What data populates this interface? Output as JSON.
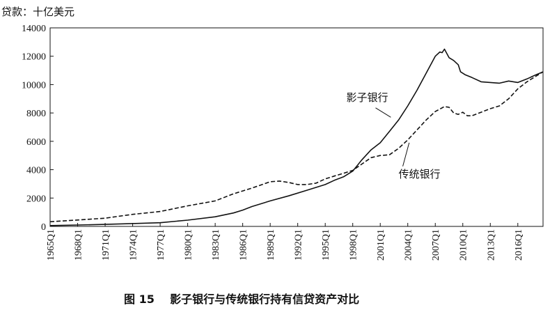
{
  "chart_data": {
    "type": "line",
    "unit_label": "贷款：十亿美元",
    "caption": "图 15    影子银行与传统银行持有信贷资产对比",
    "ylim": [
      0,
      14000
    ],
    "y_ticks": [
      0,
      2000,
      4000,
      6000,
      8000,
      10000,
      12000,
      14000
    ],
    "y_tick_labels": [
      "0",
      "2000",
      "4000",
      "6000",
      "8000",
      "10000",
      "12000",
      "14000"
    ],
    "xlim": [
      1965.0,
      2018.75
    ],
    "x_ticks": [
      1965,
      1968,
      1971,
      1974,
      1977,
      1980,
      1983,
      1986,
      1989,
      1992,
      1995,
      1998,
      2001,
      2004,
      2007,
      2010,
      2013,
      2016
    ],
    "x_tick_labels": [
      "1965Q1",
      "1968Q1",
      "1971Q1",
      "1974Q1",
      "1977Q1",
      "1980Q1",
      "1983Q1",
      "1986Q1",
      "1989Q1",
      "1992Q1",
      "1995Q1",
      "1998Q1",
      "2001Q1",
      "2004Q1",
      "2007Q1",
      "2010Q1",
      "2013Q1",
      "2016Q1"
    ],
    "grid": false,
    "series": [
      {
        "name": "影子银行",
        "style": "solid",
        "points": [
          [
            1965.0,
            60
          ],
          [
            1968.0,
            100
          ],
          [
            1971.0,
            140
          ],
          [
            1974.0,
            200
          ],
          [
            1977.0,
            260
          ],
          [
            1980.0,
            440
          ],
          [
            1983.0,
            680
          ],
          [
            1985.0,
            950
          ],
          [
            1986.0,
            1150
          ],
          [
            1987.0,
            1400
          ],
          [
            1989.0,
            1800
          ],
          [
            1991.0,
            2150
          ],
          [
            1993.0,
            2550
          ],
          [
            1995.0,
            2950
          ],
          [
            1996.0,
            3250
          ],
          [
            1997.0,
            3500
          ],
          [
            1998.0,
            3900
          ],
          [
            1999.0,
            4700
          ],
          [
            2000.0,
            5400
          ],
          [
            2001.0,
            5900
          ],
          [
            2002.0,
            6700
          ],
          [
            2003.0,
            7500
          ],
          [
            2004.0,
            8500
          ],
          [
            2005.0,
            9600
          ],
          [
            2006.0,
            10800
          ],
          [
            2007.0,
            12000
          ],
          [
            2007.5,
            12300
          ],
          [
            2007.75,
            12250
          ],
          [
            2008.0,
            12500
          ],
          [
            2008.5,
            11900
          ],
          [
            2009.0,
            11700
          ],
          [
            2009.5,
            11400
          ],
          [
            2009.75,
            10900
          ],
          [
            2010.25,
            10700
          ],
          [
            2011.0,
            10500
          ],
          [
            2012.0,
            10200
          ],
          [
            2013.0,
            10150
          ],
          [
            2014.0,
            10100
          ],
          [
            2015.0,
            10250
          ],
          [
            2016.0,
            10150
          ],
          [
            2017.0,
            10400
          ],
          [
            2018.0,
            10700
          ],
          [
            2018.75,
            10900
          ]
        ]
      },
      {
        "name": "传统银行",
        "style": "dashed",
        "points": [
          [
            1965.0,
            330
          ],
          [
            1968.0,
            450
          ],
          [
            1971.0,
            580
          ],
          [
            1974.0,
            850
          ],
          [
            1977.0,
            1050
          ],
          [
            1980.0,
            1450
          ],
          [
            1983.0,
            1800
          ],
          [
            1985.0,
            2300
          ],
          [
            1986.0,
            2500
          ],
          [
            1987.0,
            2700
          ],
          [
            1989.0,
            3150
          ],
          [
            1990.0,
            3200
          ],
          [
            1991.0,
            3100
          ],
          [
            1992.0,
            2950
          ],
          [
            1993.0,
            2950
          ],
          [
            1994.0,
            3050
          ],
          [
            1995.0,
            3350
          ],
          [
            1996.0,
            3550
          ],
          [
            1997.0,
            3750
          ],
          [
            1998.0,
            3950
          ],
          [
            1999.0,
            4400
          ],
          [
            2000.0,
            4850
          ],
          [
            2001.0,
            5000
          ],
          [
            2002.0,
            5050
          ],
          [
            2003.0,
            5500
          ],
          [
            2004.0,
            6100
          ],
          [
            2005.0,
            6800
          ],
          [
            2006.0,
            7500
          ],
          [
            2007.0,
            8100
          ],
          [
            2008.0,
            8450
          ],
          [
            2008.5,
            8400
          ],
          [
            2009.0,
            8000
          ],
          [
            2009.5,
            7900
          ],
          [
            2010.0,
            8050
          ],
          [
            2010.5,
            7800
          ],
          [
            2011.0,
            7800
          ],
          [
            2012.0,
            8050
          ],
          [
            2013.0,
            8300
          ],
          [
            2014.0,
            8500
          ],
          [
            2015.0,
            9000
          ],
          [
            2016.0,
            9700
          ],
          [
            2017.0,
            10200
          ],
          [
            2018.0,
            10600
          ],
          [
            2018.75,
            10900
          ]
        ]
      }
    ],
    "annotations": [
      {
        "text": "影子银行",
        "series": "影子银行",
        "x": 2002.3,
        "y": 7550,
        "label_x": 1997.3,
        "label_y": 8850
      },
      {
        "text": "传统银行",
        "series": "传统银行",
        "x": 2004.0,
        "y": 6100,
        "label_x": 2003.0,
        "label_y": 3450
      }
    ]
  }
}
